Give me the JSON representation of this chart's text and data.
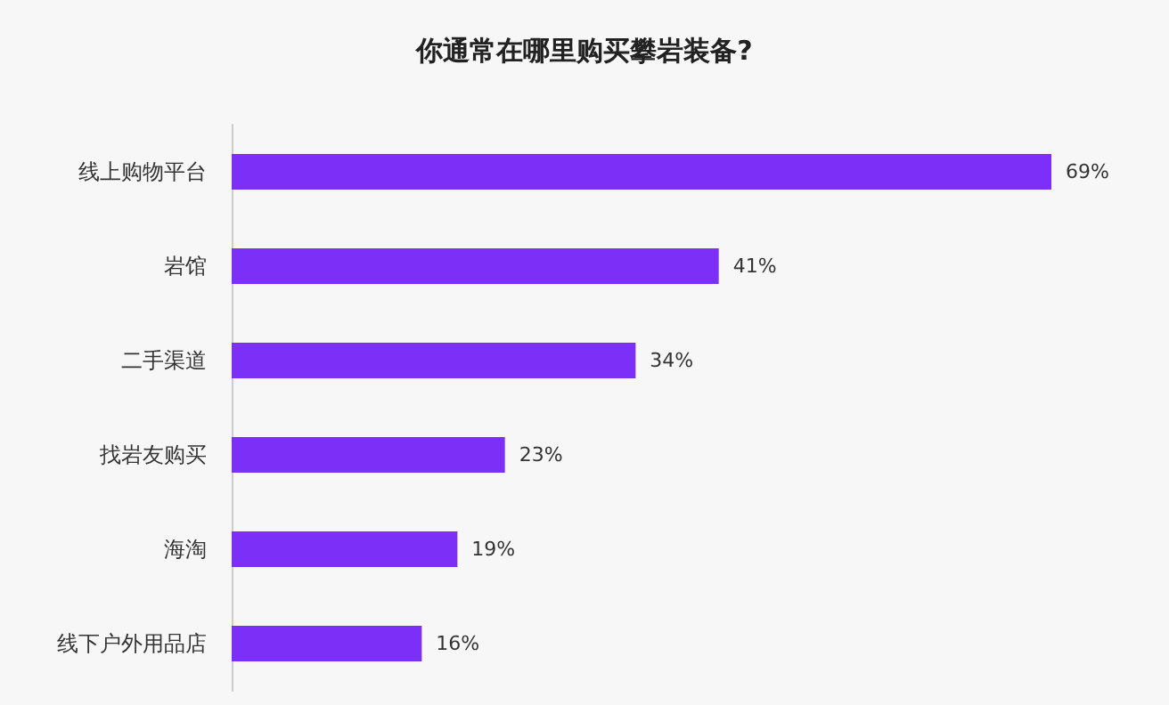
{
  "chart_data": {
    "type": "bar",
    "orientation": "horizontal",
    "title": "你通常在哪里购买攀岩装备?",
    "categories": [
      "线上购物平台",
      "岩馆",
      "二手渠道",
      "找岩友购买",
      "海淘",
      "线下户外用品店"
    ],
    "values": [
      69,
      41,
      34,
      23,
      19,
      16
    ],
    "value_labels": [
      "69%",
      "41%",
      "34%",
      "23%",
      "19%",
      "16%"
    ],
    "color": "#7b2ff7"
  }
}
